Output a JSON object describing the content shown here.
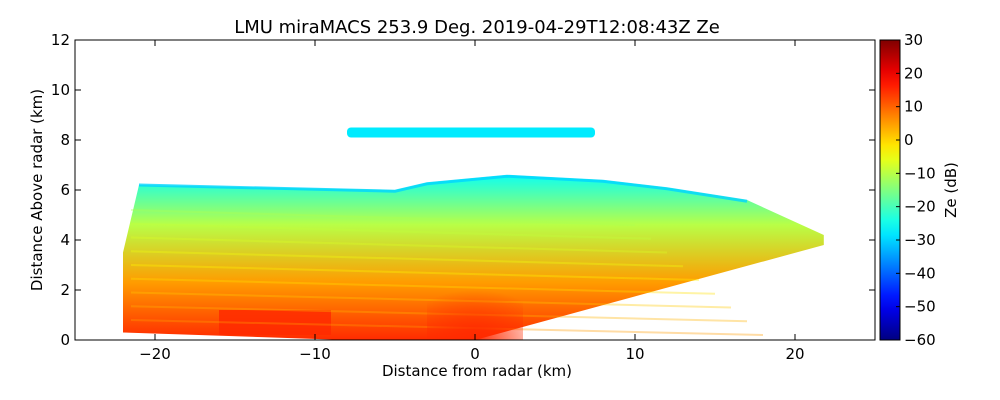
{
  "chart_data": {
    "type": "heatmap",
    "title": "LMU miraMACS 253.9 Deg. 2019-04-29T12:08:43Z  Ze",
    "xlabel": "Distance from radar (km)",
    "ylabel": "Distance Above radar  (km)",
    "xlim": [
      -25,
      25
    ],
    "ylim": [
      0,
      12
    ],
    "xticks": [
      -20,
      -10,
      0,
      10,
      20
    ],
    "xtick_labels": [
      "−20",
      "−10",
      "0",
      "10",
      "20"
    ],
    "yticks": [
      0,
      2,
      4,
      6,
      8,
      10,
      12
    ],
    "ytick_labels": [
      "0",
      "2",
      "4",
      "6",
      "8",
      "10",
      "12"
    ],
    "grid": false,
    "colorbar": {
      "label": "Ze (dB)",
      "range": [
        -60,
        30
      ],
      "colormap": "jet",
      "ticks": [
        30,
        20,
        10,
        0,
        -10,
        -20,
        -30,
        -40,
        -50,
        -60
      ],
      "tick_labels": [
        "30",
        "20",
        "10",
        "0",
        "−10",
        "−20",
        "−30",
        "−40",
        "−50",
        "−60"
      ]
    },
    "regions": [
      {
        "name": "main echo",
        "left_base_x": -22,
        "left_top_x": -21,
        "top_height": 6.2,
        "right_x": 21.8,
        "right_top_height": 4.2,
        "right_bottom_height": 3.8,
        "base_height": 0.3
      },
      {
        "name": "upper cloud layer",
        "x": [
          -8,
          7.5
        ],
        "height": [
          8.1,
          8.5
        ]
      },
      {
        "name": "near-radar column",
        "x": [
          -3,
          3
        ],
        "height": [
          0,
          2.5
        ],
        "ze_peak": 15
      }
    ],
    "ze_typical": {
      "lower_left_band": 15,
      "mid_layer": 5,
      "upper_layer": -10,
      "cloud_top": -25,
      "upper_cloud_layer": -28
    }
  }
}
